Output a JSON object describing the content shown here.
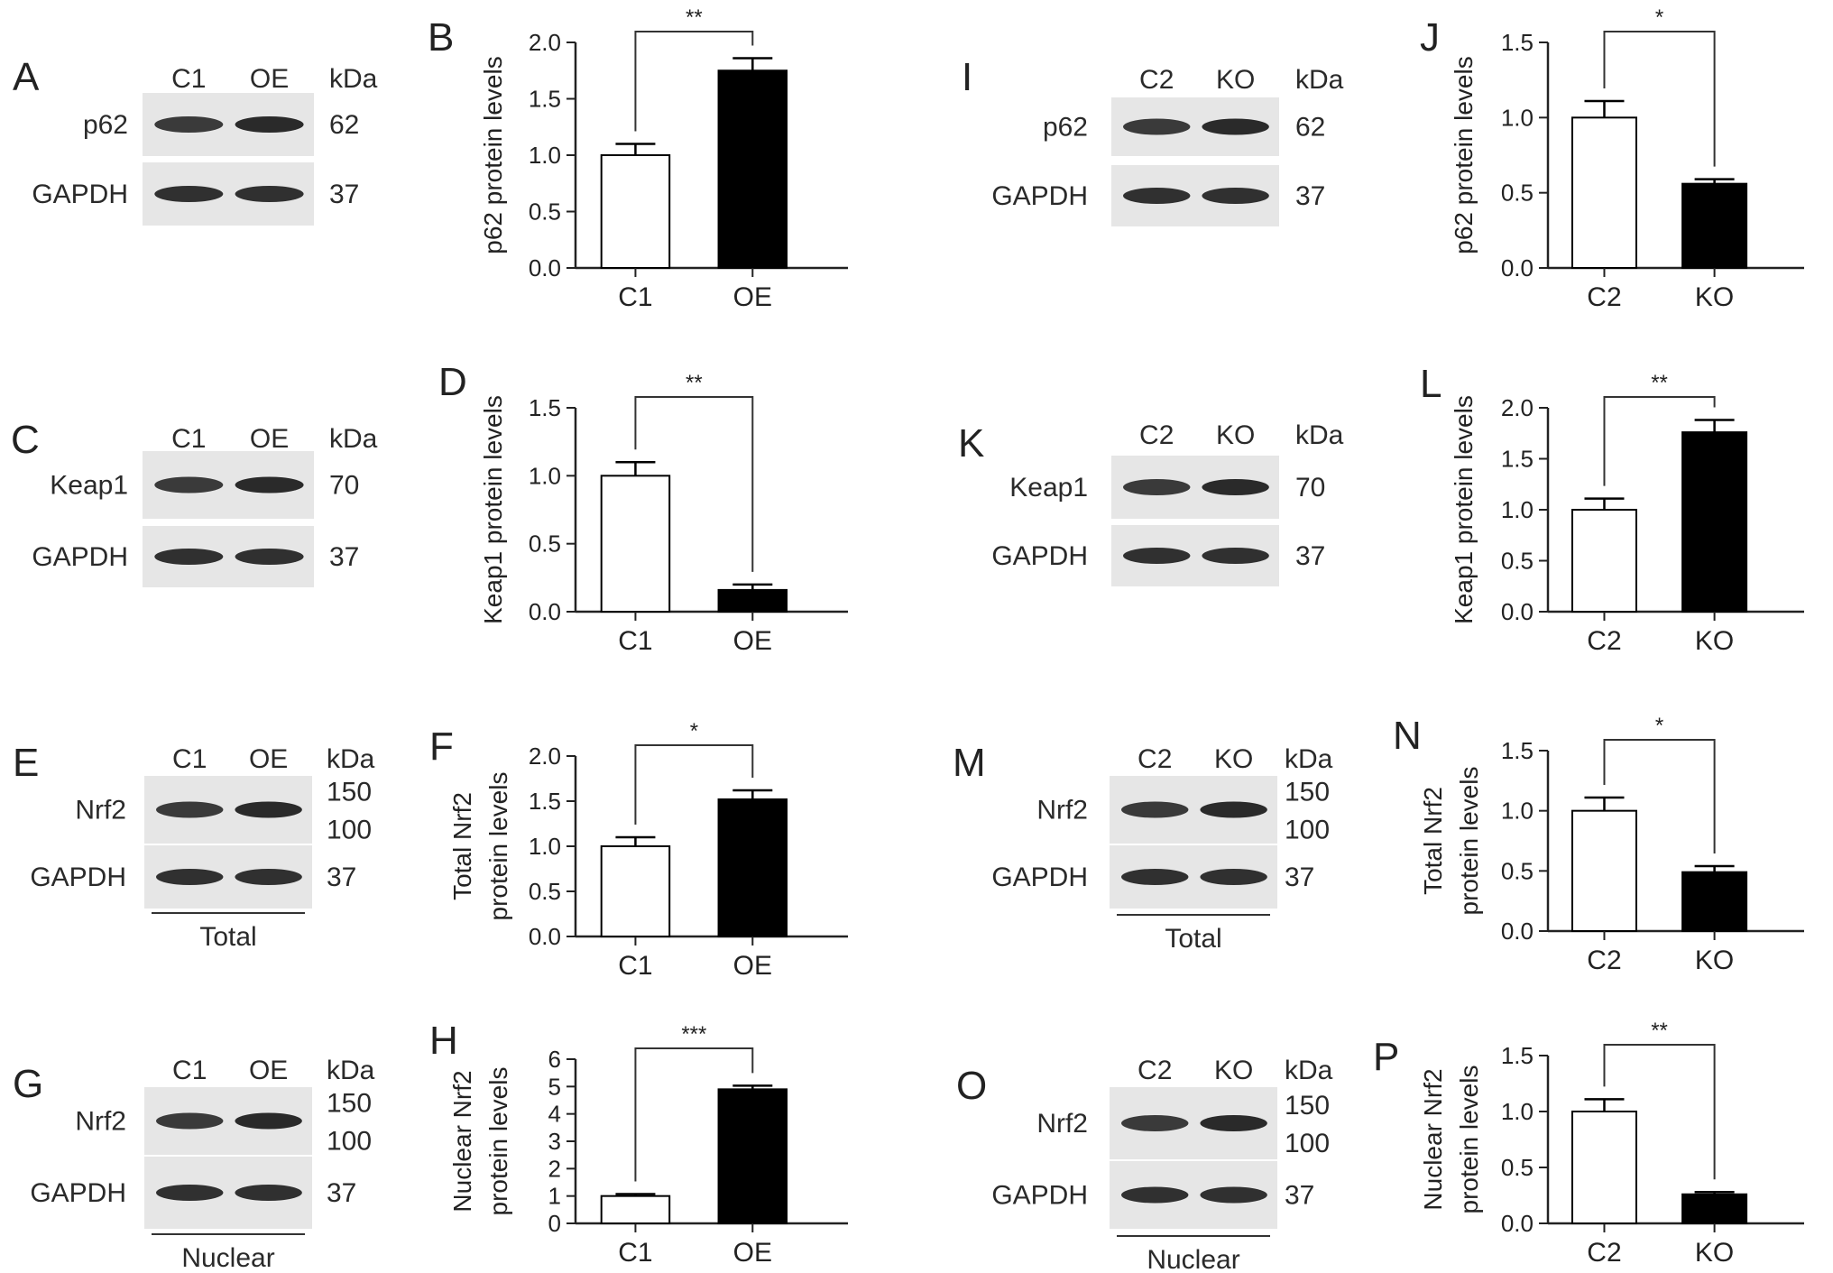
{
  "blots": [
    {
      "letter": "A",
      "lanes": [
        "C1",
        "OE"
      ],
      "unit": "kDa",
      "bands": [
        {
          "protein": "p62",
          "kda": [
            "62"
          ]
        },
        {
          "protein": "GAPDH",
          "kda": [
            "37"
          ]
        }
      ],
      "footer": ""
    },
    {
      "letter": "C",
      "lanes": [
        "C1",
        "OE"
      ],
      "unit": "kDa",
      "bands": [
        {
          "protein": "Keap1",
          "kda": [
            "70"
          ]
        },
        {
          "protein": "GAPDH",
          "kda": [
            "37"
          ]
        }
      ],
      "footer": ""
    },
    {
      "letter": "E",
      "lanes": [
        "C1",
        "OE"
      ],
      "unit": "kDa",
      "bands": [
        {
          "protein": "Nrf2",
          "kda": [
            "150",
            "100"
          ]
        },
        {
          "protein": "GAPDH",
          "kda": [
            "37"
          ]
        }
      ],
      "footer": "Total"
    },
    {
      "letter": "G",
      "lanes": [
        "C1",
        "OE"
      ],
      "unit": "kDa",
      "bands": [
        {
          "protein": "Nrf2",
          "kda": [
            "150",
            "100"
          ]
        },
        {
          "protein": "GAPDH",
          "kda": [
            "37"
          ]
        }
      ],
      "footer": "Nuclear"
    },
    {
      "letter": "I",
      "lanes": [
        "C2",
        "KO"
      ],
      "unit": "kDa",
      "bands": [
        {
          "protein": "p62",
          "kda": [
            "62"
          ]
        },
        {
          "protein": "GAPDH",
          "kda": [
            "37"
          ]
        }
      ],
      "footer": ""
    },
    {
      "letter": "K",
      "lanes": [
        "C2",
        "KO"
      ],
      "unit": "kDa",
      "bands": [
        {
          "protein": "Keap1",
          "kda": [
            "70"
          ]
        },
        {
          "protein": "GAPDH",
          "kda": [
            "37"
          ]
        }
      ],
      "footer": ""
    },
    {
      "letter": "M",
      "lanes": [
        "C2",
        "KO"
      ],
      "unit": "kDa",
      "bands": [
        {
          "protein": "Nrf2",
          "kda": [
            "150",
            "100"
          ]
        },
        {
          "protein": "GAPDH",
          "kda": [
            "37"
          ]
        }
      ],
      "footer": "Total"
    },
    {
      "letter": "O",
      "lanes": [
        "C2",
        "KO"
      ],
      "unit": "kDa",
      "bands": [
        {
          "protein": "Nrf2",
          "kda": [
            "150",
            "100"
          ]
        },
        {
          "protein": "GAPDH",
          "kda": [
            "37"
          ]
        }
      ],
      "footer": "Nuclear"
    }
  ],
  "chart_data": [
    {
      "letter": "B",
      "type": "bar",
      "categories": [
        "C1",
        "OE"
      ],
      "values": [
        1.0,
        1.75
      ],
      "errors": [
        0.1,
        0.11
      ],
      "ylabel": [
        "p62 protein levels"
      ],
      "ylim": [
        0,
        2.0
      ],
      "yticks": [
        "0.0",
        "0.5",
        "1.0",
        "1.5",
        "2.0"
      ],
      "significance": "**",
      "fills": [
        "#ffffff",
        "#000000"
      ]
    },
    {
      "letter": "D",
      "type": "bar",
      "categories": [
        "C1",
        "OE"
      ],
      "values": [
        1.0,
        0.16
      ],
      "errors": [
        0.1,
        0.04
      ],
      "ylabel": [
        "Keap1 protein levels"
      ],
      "ylim": [
        0,
        1.5
      ],
      "yticks": [
        "0.0",
        "0.5",
        "1.0",
        "1.5"
      ],
      "significance": "**",
      "fills": [
        "#ffffff",
        "#000000"
      ]
    },
    {
      "letter": "F",
      "type": "bar",
      "categories": [
        "C1",
        "OE"
      ],
      "values": [
        1.0,
        1.52
      ],
      "errors": [
        0.1,
        0.1
      ],
      "ylabel": [
        "Total Nrf2",
        "protein levels"
      ],
      "ylim": [
        0,
        2.0
      ],
      "yticks": [
        "0.0",
        "0.5",
        "1.0",
        "1.5",
        "2.0"
      ],
      "significance": "*",
      "fills": [
        "#ffffff",
        "#000000"
      ]
    },
    {
      "letter": "H",
      "type": "bar",
      "categories": [
        "C1",
        "OE"
      ],
      "values": [
        1.0,
        4.9
      ],
      "errors": [
        0.07,
        0.13
      ],
      "ylabel": [
        "Nuclear Nrf2",
        "protein levels"
      ],
      "ylim": [
        0,
        6
      ],
      "yticks": [
        "0",
        "1",
        "2",
        "3",
        "4",
        "5",
        "6"
      ],
      "significance": "***",
      "fills": [
        "#ffffff",
        "#000000"
      ]
    },
    {
      "letter": "J",
      "type": "bar",
      "categories": [
        "C2",
        "KO"
      ],
      "values": [
        1.0,
        0.56
      ],
      "errors": [
        0.11,
        0.03
      ],
      "ylabel": [
        "p62 protein levels"
      ],
      "ylim": [
        0,
        1.5
      ],
      "yticks": [
        "0.0",
        "0.5",
        "1.0",
        "1.5"
      ],
      "significance": "*",
      "fills": [
        "#ffffff",
        "#000000"
      ]
    },
    {
      "letter": "L",
      "type": "bar",
      "categories": [
        "C2",
        "KO"
      ],
      "values": [
        1.0,
        1.76
      ],
      "errors": [
        0.11,
        0.12
      ],
      "ylabel": [
        "Keap1 protein levels"
      ],
      "ylim": [
        0,
        2.0
      ],
      "yticks": [
        "0.0",
        "0.5",
        "1.0",
        "1.5",
        "2.0"
      ],
      "significance": "**",
      "fills": [
        "#ffffff",
        "#000000"
      ]
    },
    {
      "letter": "N",
      "type": "bar",
      "categories": [
        "C2",
        "KO"
      ],
      "values": [
        1.0,
        0.49
      ],
      "errors": [
        0.11,
        0.05
      ],
      "ylabel": [
        "Total Nrf2",
        "protein levels"
      ],
      "ylim": [
        0,
        1.5
      ],
      "yticks": [
        "0.0",
        "0.5",
        "1.0",
        "1.5"
      ],
      "significance": "*",
      "fills": [
        "#ffffff",
        "#000000"
      ]
    },
    {
      "letter": "P",
      "type": "bar",
      "categories": [
        "C2",
        "KO"
      ],
      "values": [
        1.0,
        0.26
      ],
      "errors": [
        0.11,
        0.02
      ],
      "ylabel": [
        "Nuclear Nrf2",
        "protein levels"
      ],
      "ylim": [
        0,
        1.5
      ],
      "yticks": [
        "0.0",
        "0.5",
        "1.0",
        "1.5"
      ],
      "significance": "**",
      "fills": [
        "#ffffff",
        "#000000"
      ]
    }
  ]
}
